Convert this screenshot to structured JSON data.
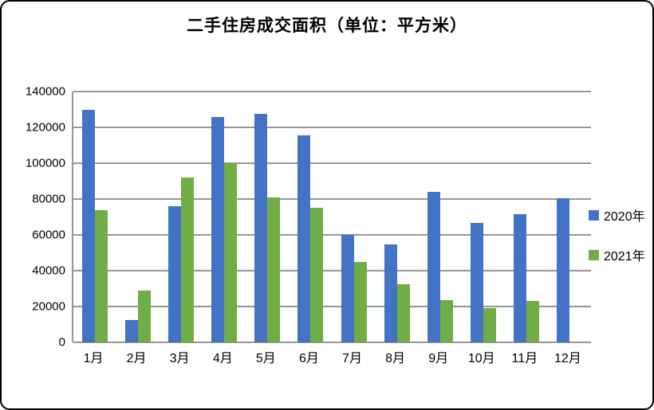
{
  "chart_data": {
    "type": "bar",
    "title": "二手住房成交面积（单位：平方米）",
    "xlabel": "",
    "ylabel": "",
    "categories": [
      "1月",
      "2月",
      "3月",
      "4月",
      "5月",
      "6月",
      "7月",
      "8月",
      "9月",
      "10月",
      "11月",
      "12月"
    ],
    "series": [
      {
        "name": "2020年",
        "color": "#4472C4",
        "values": [
          130000,
          12500,
          76000,
          126000,
          127500,
          115500,
          60000,
          54500,
          84000,
          66500,
          71500,
          80500
        ]
      },
      {
        "name": "2021年",
        "color": "#70AD47",
        "values": [
          74000,
          29000,
          92000,
          100000,
          81000,
          75000,
          45000,
          32500,
          23500,
          19000,
          23000,
          null
        ]
      }
    ],
    "ylim": [
      0,
      140000
    ],
    "yticks": [
      0,
      20000,
      40000,
      60000,
      80000,
      100000,
      120000,
      140000
    ],
    "grid": "horizontal",
    "gridline_color": "#969696",
    "legend_position": "right"
  }
}
